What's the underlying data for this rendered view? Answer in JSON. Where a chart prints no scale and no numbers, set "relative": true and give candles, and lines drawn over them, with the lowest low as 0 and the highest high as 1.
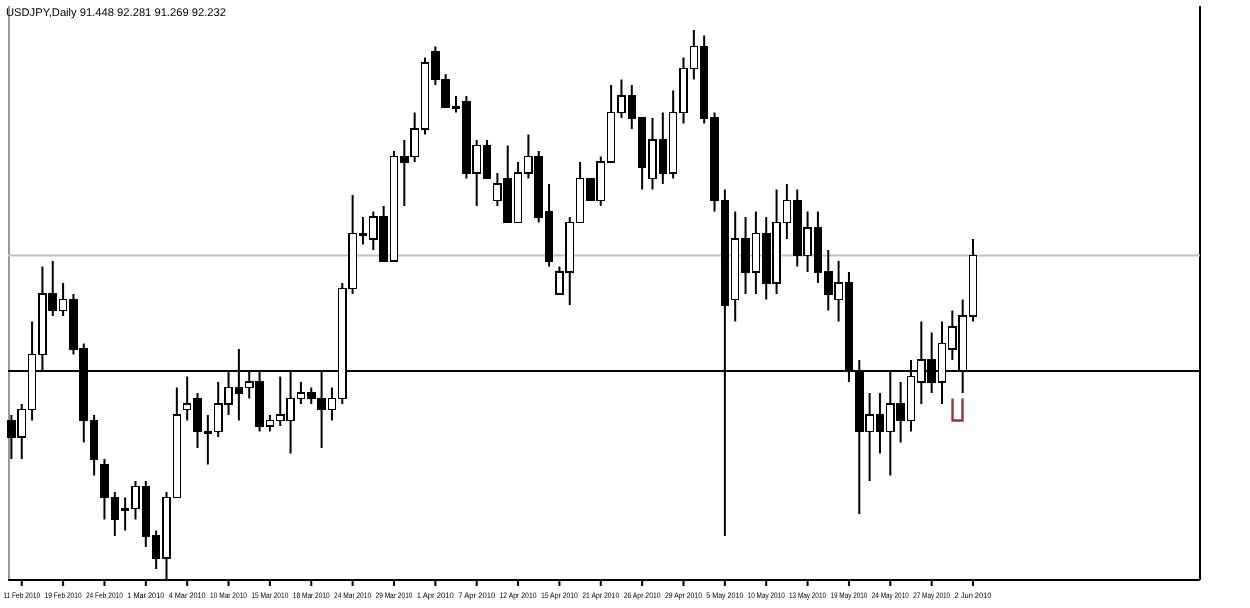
{
  "chart_data": {
    "type": "candlestick",
    "title": "USDJPY,Daily  91.448 92.281 91.269 92.232",
    "relative": true,
    "color": "#000000",
    "grid": false,
    "categories": [
      null,
      "11 Feb 2010",
      null,
      null,
      null,
      "19 Feb 2010",
      null,
      null,
      null,
      "24 Feb 2010",
      null,
      null,
      null,
      "1 Mar 2010",
      null,
      null,
      null,
      "4 Mar 2010",
      null,
      null,
      null,
      "10 Mar 2010",
      null,
      null,
      null,
      "15 Mar 2010",
      null,
      null,
      null,
      "18 Mar 2010",
      null,
      null,
      null,
      "24 Mar 2010",
      null,
      null,
      null,
      "29 Mar 2010",
      null,
      null,
      null,
      "1 Apr 2010",
      null,
      null,
      null,
      "7 Apr 2010",
      null,
      null,
      null,
      "12 Apr 2010",
      null,
      null,
      null,
      "15 Apr 2010",
      null,
      null,
      null,
      "21 Apr 2010",
      null,
      null,
      null,
      "26 Apr 2010",
      null,
      null,
      null,
      "29 Apr 2010",
      null,
      null,
      null,
      "5 May 2010",
      null,
      null,
      null,
      "10 May 2010",
      null,
      null,
      null,
      "13 May 2010",
      null,
      null,
      null,
      "19 May 2010",
      null,
      null,
      null,
      "24 May 2010",
      null,
      null,
      null,
      "27 May 2010",
      null,
      null,
      null,
      "2 Jun 2010"
    ],
    "ohlc": [
      [
        0.29,
        0.3,
        0.22,
        0.26
      ],
      [
        0.26,
        0.32,
        0.22,
        0.31
      ],
      [
        0.31,
        0.47,
        0.29,
        0.41
      ],
      [
        0.41,
        0.57,
        0.38,
        0.52
      ],
      [
        0.52,
        0.58,
        0.48,
        0.49
      ],
      [
        0.49,
        0.54,
        0.48,
        0.51
      ],
      [
        0.51,
        0.52,
        0.41,
        0.42
      ],
      [
        0.42,
        0.43,
        0.25,
        0.29
      ],
      [
        0.29,
        0.3,
        0.19,
        0.22
      ],
      [
        0.21,
        0.22,
        0.11,
        0.15
      ],
      [
        0.15,
        0.16,
        0.08,
        0.11
      ],
      [
        0.13,
        0.15,
        0.09,
        0.13
      ],
      [
        0.13,
        0.18,
        0.11,
        0.17
      ],
      [
        0.17,
        0.18,
        0.06,
        0.08
      ],
      [
        0.08,
        0.09,
        0.02,
        0.04
      ],
      [
        0.04,
        0.16,
        0,
        0.15
      ],
      [
        0.15,
        0.35,
        0.15,
        0.3
      ],
      [
        0.31,
        0.37,
        0.29,
        0.32
      ],
      [
        0.33,
        0.34,
        0.24,
        0.27
      ],
      [
        0.27,
        0.3,
        0.21,
        0.27
      ],
      [
        0.27,
        0.36,
        0.26,
        0.32
      ],
      [
        0.32,
        0.38,
        0.3,
        0.35
      ],
      [
        0.35,
        0.42,
        0.29,
        0.34
      ],
      [
        0.35,
        0.38,
        0.33,
        0.36
      ],
      [
        0.36,
        0.38,
        0.27,
        0.28
      ],
      [
        0.28,
        0.3,
        0.27,
        0.29
      ],
      [
        0.29,
        0.37,
        0.28,
        0.3
      ],
      [
        0.29,
        0.38,
        0.23,
        0.33
      ],
      [
        0.33,
        0.36,
        0.32,
        0.34
      ],
      [
        0.34,
        0.35,
        0.32,
        0.33
      ],
      [
        0.33,
        0.38,
        0.24,
        0.31
      ],
      [
        0.31,
        0.35,
        0.29,
        0.33
      ],
      [
        0.33,
        0.54,
        0.32,
        0.53
      ],
      [
        0.53,
        0.7,
        0.52,
        0.63
      ],
      [
        0.63,
        0.66,
        0.61,
        0.63
      ],
      [
        0.62,
        0.67,
        0.6,
        0.66
      ],
      [
        0.66,
        0.68,
        0.58,
        0.58
      ],
      [
        0.58,
        0.78,
        0.58,
        0.77
      ],
      [
        0.77,
        0.8,
        0.68,
        0.76
      ],
      [
        0.77,
        0.85,
        0.76,
        0.82
      ],
      [
        0.82,
        0.95,
        0.81,
        0.94
      ],
      [
        0.96,
        0.97,
        0.9,
        0.91
      ],
      [
        0.91,
        0.92,
        0.86,
        0.86
      ],
      [
        0.86,
        0.88,
        0.85,
        0.86
      ],
      [
        0.87,
        0.88,
        0.73,
        0.74
      ],
      [
        0.74,
        0.8,
        0.68,
        0.79
      ],
      [
        0.79,
        0.8,
        0.73,
        0.73
      ],
      [
        0.69,
        0.74,
        0.68,
        0.72
      ],
      [
        0.73,
        0.79,
        0.65,
        0.65
      ],
      [
        0.65,
        0.76,
        0.65,
        0.74
      ],
      [
        0.74,
        0.81,
        0.73,
        0.77
      ],
      [
        0.77,
        0.78,
        0.65,
        0.66
      ],
      [
        0.67,
        0.72,
        0.57,
        0.58
      ],
      [
        0.52,
        0.57,
        0.52,
        0.56
      ],
      [
        0.56,
        0.66,
        0.5,
        0.65
      ],
      [
        0.65,
        0.76,
        0.65,
        0.73
      ],
      [
        0.73,
        0.73,
        0.69,
        0.69
      ],
      [
        0.69,
        0.77,
        0.68,
        0.76
      ],
      [
        0.76,
        0.9,
        0.76,
        0.85
      ],
      [
        0.85,
        0.91,
        0.84,
        0.88
      ],
      [
        0.88,
        0.9,
        0.82,
        0.84
      ],
      [
        0.84,
        0.84,
        0.71,
        0.75
      ],
      [
        0.73,
        0.84,
        0.71,
        0.8
      ],
      [
        0.8,
        0.85,
        0.72,
        0.74
      ],
      [
        0.74,
        0.89,
        0.73,
        0.85
      ],
      [
        0.85,
        0.95,
        0.83,
        0.93
      ],
      [
        0.93,
        1,
        0.91,
        0.97
      ],
      [
        0.97,
        0.99,
        0.83,
        0.84
      ],
      [
        0.84,
        0.85,
        0.67,
        0.69
      ],
      [
        0.69,
        0.71,
        0.08,
        0.5
      ],
      [
        0.51,
        0.67,
        0.47,
        0.62
      ],
      [
        0.62,
        0.66,
        0.52,
        0.56
      ],
      [
        0.56,
        0.67,
        0.52,
        0.63
      ],
      [
        0.63,
        0.66,
        0.51,
        0.54
      ],
      [
        0.54,
        0.71,
        0.52,
        0.65
      ],
      [
        0.65,
        0.72,
        0.62,
        0.69
      ],
      [
        0.69,
        0.71,
        0.57,
        0.59
      ],
      [
        0.59,
        0.67,
        0.56,
        0.64
      ],
      [
        0.64,
        0.67,
        0.54,
        0.56
      ],
      [
        0.56,
        0.6,
        0.49,
        0.52
      ],
      [
        0.51,
        0.58,
        0.47,
        0.54
      ],
      [
        0.54,
        0.56,
        0.36,
        0.38
      ],
      [
        0.38,
        0.4,
        0.12,
        0.27
      ],
      [
        0.27,
        0.34,
        0.18,
        0.3
      ],
      [
        0.3,
        0.34,
        0.23,
        0.27
      ],
      [
        0.27,
        0.38,
        0.19,
        0.32
      ],
      [
        0.32,
        0.36,
        0.25,
        0.29
      ],
      [
        0.29,
        0.4,
        0.27,
        0.37
      ],
      [
        0.36,
        0.47,
        0.32,
        0.4
      ],
      [
        0.4,
        0.45,
        0.34,
        0.36
      ],
      [
        0.36,
        0.47,
        0.32,
        0.43
      ],
      [
        0.42,
        0.49,
        0.4,
        0.46
      ],
      [
        0.38,
        0.51,
        0.34,
        0.48
      ],
      [
        0.48,
        0.62,
        0.47,
        0.59
      ]
    ],
    "ref_lines": [
      {
        "axis": "y",
        "value": 0.38,
        "color": "#000000"
      },
      {
        "axis": "y",
        "value": 0.59,
        "color": "#c0c0c0"
      }
    ]
  }
}
